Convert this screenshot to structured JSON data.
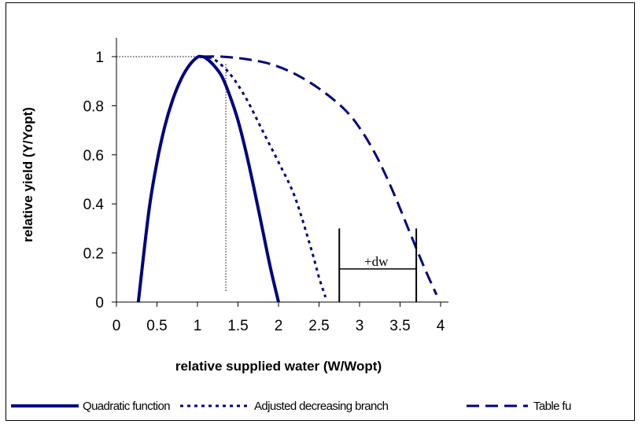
{
  "chart_data": {
    "type": "line",
    "xlabel": "relative supplied water (W/Wopt)",
    "ylabel": "relative yield (Y/Yopt)",
    "xlim": [
      0,
      4
    ],
    "ylim": [
      0,
      1
    ],
    "x_ticks": [
      "0",
      "0.5",
      "1",
      "1.5",
      "2",
      "2.5",
      "3",
      "3.5",
      "4"
    ],
    "y_ticks": [
      "0",
      "0.2",
      "0.4",
      "0.6",
      "0.8",
      "1"
    ],
    "grid": false,
    "legend_position": "bottom",
    "series": [
      {
        "name": "Quadratic function",
        "style": "solid",
        "color": "#000080",
        "x": [
          0.27,
          0.4,
          0.5,
          0.6,
          0.7,
          0.8,
          0.9,
          1.0,
          1.05,
          1.1,
          1.2,
          1.3,
          1.4,
          1.5,
          1.6,
          1.7,
          1.8,
          1.9,
          2.0
        ],
        "y": [
          0,
          0.37,
          0.57,
          0.72,
          0.83,
          0.91,
          0.965,
          0.998,
          1.0,
          0.995,
          0.965,
          0.92,
          0.84,
          0.74,
          0.61,
          0.46,
          0.3,
          0.14,
          0
        ]
      },
      {
        "name": "Adjusted decreasing branch",
        "style": "dotted",
        "color": "#000080",
        "x": [
          1.05,
          1.2,
          1.4,
          1.6,
          1.8,
          2.0,
          2.2,
          2.4,
          2.5,
          2.58
        ],
        "y": [
          1.0,
          0.99,
          0.93,
          0.83,
          0.7,
          0.57,
          0.43,
          0.22,
          0.1,
          0.02
        ]
      },
      {
        "name": "Table function",
        "style": "dashed",
        "color": "#000080",
        "x": [
          1.05,
          1.3,
          1.6,
          1.9,
          2.2,
          2.5,
          2.8,
          3.0,
          3.2,
          3.4,
          3.6,
          3.8,
          3.95
        ],
        "y": [
          1.0,
          1.0,
          0.99,
          0.97,
          0.93,
          0.87,
          0.79,
          0.71,
          0.6,
          0.46,
          0.3,
          0.14,
          0.03
        ]
      }
    ],
    "reference_lines": {
      "horizontal_y": 1.0,
      "horizontal_x_end": 1.05,
      "vertical_x": 1.35,
      "vertical_y_top": 0.97
    },
    "annotation": {
      "text": "+dw",
      "x_left": 2.75,
      "x_right": 3.7,
      "y_top": 0.3,
      "y_bar": 0.135
    }
  },
  "legend": {
    "items": [
      "Quadratic function",
      "Adjusted decreasing branch",
      "Table fu"
    ]
  }
}
